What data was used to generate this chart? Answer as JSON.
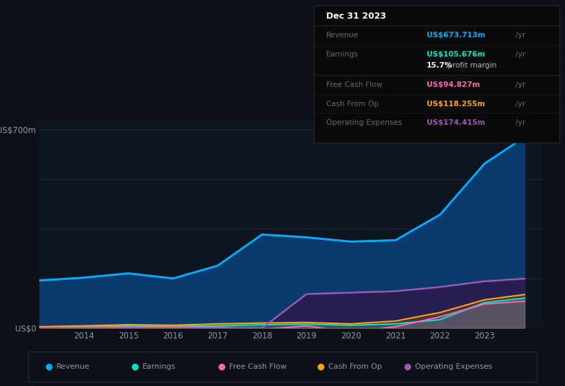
{
  "years": [
    2013,
    2014,
    2015,
    2016,
    2017,
    2018,
    2019,
    2020,
    2021,
    2022,
    2023,
    2023.9
  ],
  "revenue": [
    168,
    178,
    193,
    175,
    220,
    330,
    320,
    305,
    310,
    400,
    580,
    673.7
  ],
  "earnings": [
    3,
    5,
    8,
    6,
    8,
    12,
    14,
    10,
    15,
    30,
    90,
    105.7
  ],
  "free_cash_flow": [
    2,
    1,
    3,
    2,
    4,
    -5,
    8,
    -15,
    5,
    40,
    85,
    94.8
  ],
  "cash_from_op": [
    5,
    8,
    12,
    10,
    15,
    18,
    20,
    15,
    25,
    55,
    100,
    118.3
  ],
  "operating_expenses": [
    0,
    0,
    0,
    0,
    0,
    0,
    120,
    125,
    130,
    145,
    165,
    174.4
  ],
  "bg_color": "#0d1117",
  "plot_bg_color": "#0d1520",
  "revenue_color": "#00aaff",
  "revenue_fill": "#0a3a6e",
  "earnings_color": "#00e5cc",
  "free_cash_flow_color": "#ff69b4",
  "cash_from_op_color": "#ffa500",
  "op_expenses_color": "#9b59b6",
  "op_expenses_fill": "#2d1b4e",
  "grid_color": "#1e2d3d",
  "text_color": "#8899aa",
  "ylim": [
    0,
    735
  ],
  "yticks": [
    0,
    175,
    350,
    525,
    700
  ],
  "ytick_labels": [
    "US$0",
    "",
    "",
    "",
    "US$700m"
  ],
  "xtick_labels": [
    "2014",
    "2015",
    "2016",
    "2017",
    "2018",
    "2019",
    "2020",
    "2021",
    "2022",
    "2023"
  ],
  "tooltip_title": "Dec 31 2023",
  "tooltip_revenue_label": "Revenue",
  "tooltip_revenue_val": "US$673.713m",
  "tooltip_earnings_label": "Earnings",
  "tooltip_earnings_val": "US$105.676m",
  "tooltip_margin": "15.7%",
  "tooltip_margin_text": " profit margin",
  "tooltip_fcf_label": "Free Cash Flow",
  "tooltip_fcf_val": "US$94.827m",
  "tooltip_cfop_label": "Cash From Op",
  "tooltip_cfop_val": "US$118.255m",
  "tooltip_opex_label": "Operating Expenses",
  "tooltip_opex_val": "US$174.415m",
  "legend_items": [
    "Revenue",
    "Earnings",
    "Free Cash Flow",
    "Cash From Op",
    "Operating Expenses"
  ]
}
